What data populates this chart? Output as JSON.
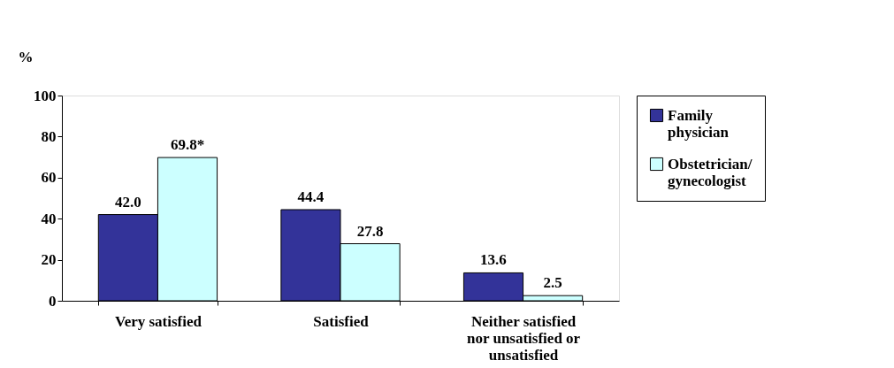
{
  "chart_data": {
    "type": "bar",
    "ylabel": "%",
    "categories": [
      "Very satisfied",
      "Satisfied",
      "Neither satisfied nor unsatisfied or unsatisfied"
    ],
    "series": [
      {
        "name": "Family physician",
        "color": "#333399",
        "values": [
          42.0,
          44.4,
          13.6
        ],
        "value_labels": [
          "42.0",
          "44.4",
          "13.6"
        ]
      },
      {
        "name": "Obstetrician/ gynecologist",
        "color": "#ccffff",
        "values": [
          69.8,
          27.8,
          2.5
        ],
        "value_labels": [
          "69.8*",
          "27.8",
          "2.5"
        ]
      }
    ],
    "ylim": [
      0,
      100
    ],
    "yticks": [
      0,
      20,
      40,
      60,
      80,
      100
    ],
    "grid": false,
    "legend": "right"
  }
}
